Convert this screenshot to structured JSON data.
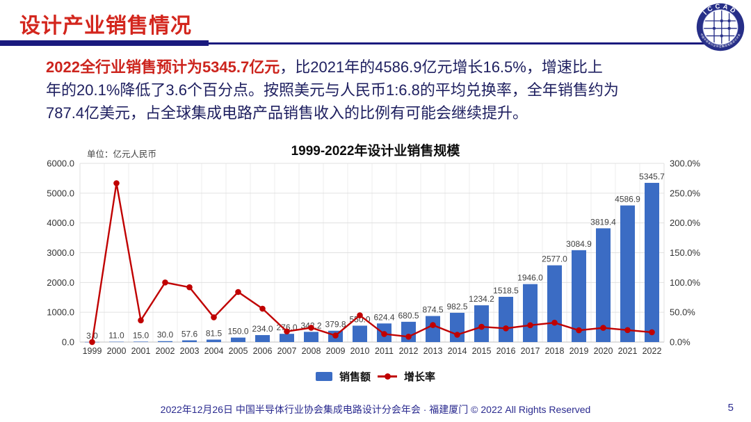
{
  "header": {
    "title": "设计产业销售情况"
  },
  "logo": {
    "text": "ICCAD",
    "subtext": "中国半导体行业协会集成电路设计分会"
  },
  "paragraph": {
    "line1_highlight": "2022全行业销售预计为5345.7亿元",
    "line1_rest": "，比2021年的4586.9亿元增长16.5%，增速比上",
    "line2": "年的20.1%降低了3.6个百分点。按照美元与人民币1:6.8的平均兑换率，全年销售约为",
    "line3": "787.4亿美元，占全球集成电路产品销售收入的比例有可能会继续提升。"
  },
  "chart": {
    "title": "1999-2022年设计业销售规模",
    "unit_label": "单位：亿元人民币"
  },
  "chart_data": {
    "type": "bar+line combo",
    "title": "1999-2022年设计业销售规模",
    "categories": [
      "1999",
      "2000",
      "2001",
      "2002",
      "2003",
      "2004",
      "2005",
      "2006",
      "2007",
      "2008",
      "2009",
      "2010",
      "2011",
      "2012",
      "2013",
      "2014",
      "2015",
      "2016",
      "2017",
      "2018",
      "2019",
      "2020",
      "2021",
      "2022"
    ],
    "series": [
      {
        "name": "销售额",
        "type": "bar",
        "axis": "left",
        "color": "#3b6cc4",
        "values": [
          3.0,
          11.0,
          15.0,
          30.0,
          57.6,
          81.5,
          150.0,
          234.0,
          276.0,
          342.2,
          379.8,
          550.0,
          624.4,
          680.5,
          874.5,
          982.5,
          1234.2,
          1518.5,
          1946.0,
          2577.0,
          3084.9,
          3819.4,
          4586.9,
          5345.7
        ]
      },
      {
        "name": "增长率",
        "type": "line",
        "axis": "right",
        "color": "#c00000",
        "values_pct": [
          0.0,
          266.7,
          36.4,
          100.0,
          92.0,
          41.5,
          84.0,
          56.0,
          17.9,
          24.0,
          11.0,
          44.8,
          13.5,
          9.0,
          28.5,
          12.3,
          25.6,
          23.0,
          28.2,
          32.4,
          19.7,
          23.8,
          20.1,
          16.5
        ]
      }
    ],
    "y_left": {
      "min": 0,
      "max": 6000,
      "step": 1000,
      "ticks": [
        "0.0",
        "1000.0",
        "2000.0",
        "3000.0",
        "4000.0",
        "5000.0",
        "6000.0"
      ]
    },
    "y_right": {
      "min": 0,
      "max": 300,
      "step": 50,
      "ticks": [
        "0.0%",
        "50.0%",
        "100.0%",
        "150.0%",
        "200.0%",
        "250.0%",
        "300.0%"
      ]
    },
    "grid": "both",
    "legend_position": "bottom"
  },
  "footer": {
    "text": "2022年12月26日 中国半导体行业协会集成电路设计分会年会 · 福建厦门 © 2022 All Rights Reserved",
    "page": "5"
  }
}
